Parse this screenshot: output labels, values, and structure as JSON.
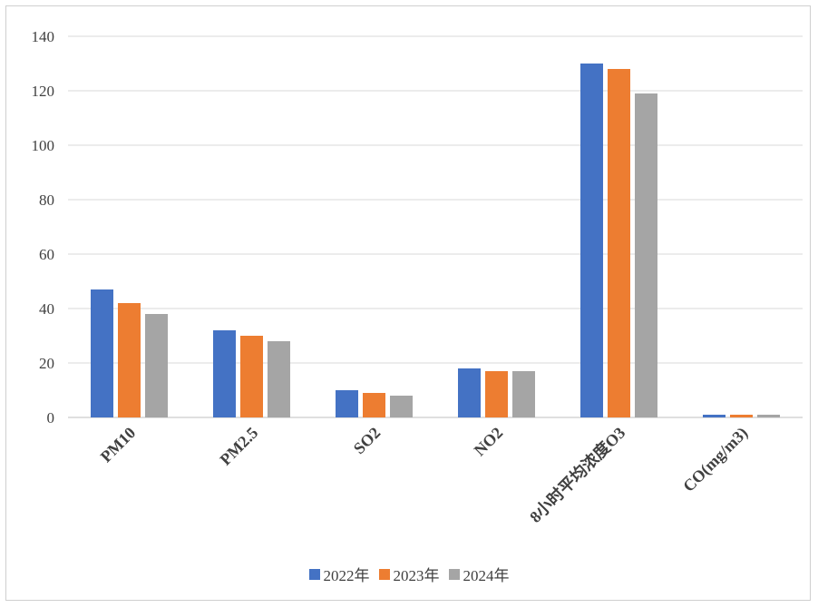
{
  "chart_data": {
    "type": "bar",
    "categories": [
      "PM10",
      "PM2.5",
      "SO2",
      "NO2",
      "8小时平均浓度O3",
      "CO(mg/m3)"
    ],
    "series": [
      {
        "name": "2022年",
        "color": "#4472C4",
        "values": [
          47,
          32,
          10,
          18,
          130,
          1
        ]
      },
      {
        "name": "2023年",
        "color": "#ED7D31",
        "values": [
          42,
          30,
          9,
          17,
          128,
          1
        ]
      },
      {
        "name": "2024年",
        "color": "#A5A5A5",
        "values": [
          38,
          28,
          8,
          17,
          119,
          1
        ]
      }
    ],
    "yticks": [
      "0",
      "20",
      "40",
      "60",
      "80",
      "100",
      "120",
      "140"
    ],
    "ylim": [
      0,
      140
    ],
    "grid": true,
    "legend_position": "bottom"
  }
}
